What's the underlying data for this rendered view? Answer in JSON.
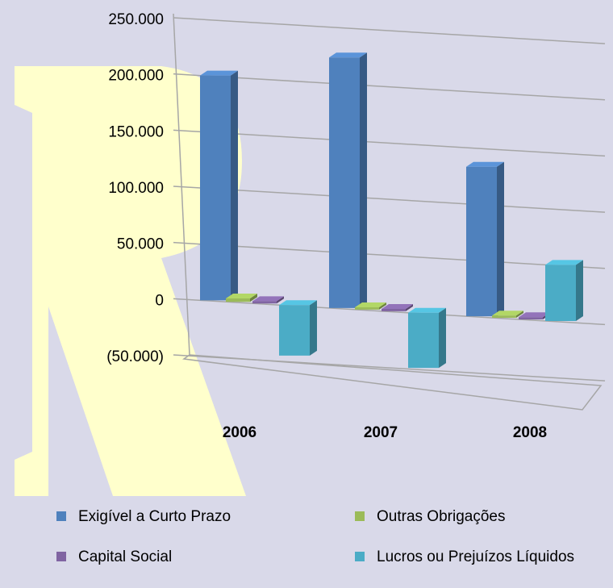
{
  "chart_data": {
    "type": "bar3d",
    "categories": [
      "2006",
      "2007",
      "2008"
    ],
    "series": [
      {
        "name": "Exigível a Curto Prazo",
        "color": "#4f81bd",
        "values": [
          200000,
          223000,
          133000
        ]
      },
      {
        "name": "Outras Obrigações",
        "color": "#9bbb59",
        "values": [
          3000,
          2000,
          2000
        ]
      },
      {
        "name": "Capital Social",
        "color": "#8064a2",
        "values": [
          2000,
          2000,
          2000
        ]
      },
      {
        "name": "Lucros ou Prejuízos Líquidos",
        "color": "#4bacc6",
        "values": [
          -45000,
          -49000,
          50000
        ]
      }
    ],
    "ylim": [
      -50000,
      250000
    ],
    "yticks": [
      {
        "value": -50000,
        "label": "(50.000)"
      },
      0,
      {
        "value": 50000,
        "label": "50.000"
      },
      {
        "value": 100000,
        "label": "100.000"
      },
      {
        "value": 150000,
        "label": "150.000"
      },
      {
        "value": 200000,
        "label": "200.000"
      },
      {
        "value": 250000,
        "label": "250.000"
      }
    ],
    "grid": true,
    "legend": "bottom"
  }
}
